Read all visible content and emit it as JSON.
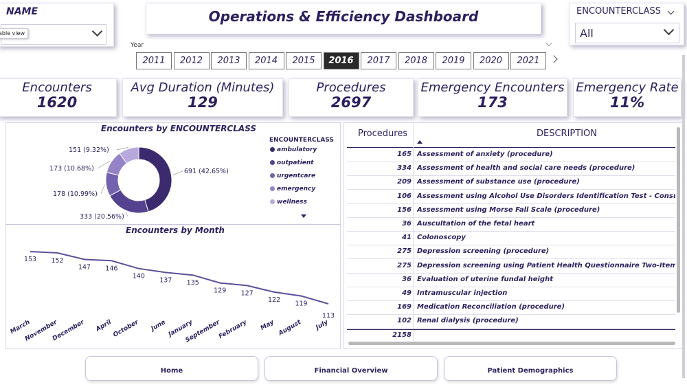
{
  "header": {
    "title": "Operations & Efficiency Dashboard"
  },
  "name_slicer": {
    "title": "NAME",
    "tooltip": "able view"
  },
  "year_slicer": {
    "label": "Year",
    "years": [
      "2011",
      "2012",
      "2013",
      "2014",
      "2015",
      "2016",
      "2017",
      "2018",
      "2019",
      "2020",
      "2021"
    ],
    "selected": "2016"
  },
  "encounterclass_slicer": {
    "title": "ENCOUNTERCLASS",
    "value": "All"
  },
  "kpis": [
    {
      "label": "Encounters",
      "value": "1620"
    },
    {
      "label": "Avg Duration (Minutes)",
      "value": "129"
    },
    {
      "label": "Procedures",
      "value": "2697"
    },
    {
      "label": "Emergency Encounters",
      "value": "173"
    },
    {
      "label": "Emergency Rate",
      "value": "11%"
    }
  ],
  "chart_data": [
    {
      "type": "pie",
      "title": "Encounters by ENCOUNTERCLASS",
      "legend_title": "ENCOUNTERCLASS",
      "legend_position": "right",
      "categories": [
        "ambulatory",
        "outpatient",
        "urgentcare",
        "emergency",
        "wellness"
      ],
      "values": [
        691,
        333,
        178,
        173,
        151
      ],
      "labels": [
        "691 (42.65%)",
        "333 (20.56%)",
        "178 (10.99%)",
        "173 (10.68%)",
        "151 (9.32%)"
      ],
      "colors": [
        "#3b2a6e",
        "#54418f",
        "#7562ae",
        "#9683c7",
        "#b8a9dd"
      ]
    },
    {
      "type": "line",
      "title": "Encounters by Month",
      "categories": [
        "March",
        "November",
        "December",
        "April",
        "October",
        "June",
        "January",
        "September",
        "February",
        "May",
        "August",
        "July"
      ],
      "values": [
        153,
        152,
        147,
        146,
        140,
        137,
        135,
        129,
        127,
        122,
        119,
        113
      ],
      "color": "#5e4e9a"
    }
  ],
  "table": {
    "columns": [
      "Procedures",
      "DESCRIPTION"
    ],
    "rows": [
      {
        "procedures": "165",
        "description": "Assessment of anxiety (procedure)"
      },
      {
        "procedures": "334",
        "description": "Assessment of health and social care needs (procedure)"
      },
      {
        "procedures": "209",
        "description": "Assessment of substance use (procedure)"
      },
      {
        "procedures": "106",
        "description": "Assessment using Alcohol Use Disorders Identification Test - Consumption"
      },
      {
        "procedures": "156",
        "description": "Assessment using Morse Fall Scale (procedure)"
      },
      {
        "procedures": "36",
        "description": "Auscultation of the fetal heart"
      },
      {
        "procedures": "41",
        "description": "Colonoscopy"
      },
      {
        "procedures": "275",
        "description": "Depression screening (procedure)"
      },
      {
        "procedures": "275",
        "description": "Depression screening using Patient Health Questionnaire Two-Item score ("
      },
      {
        "procedures": "36",
        "description": "Evaluation of uterine fundal height"
      },
      {
        "procedures": "49",
        "description": "Intramuscular injection"
      },
      {
        "procedures": "169",
        "description": "Medication Reconciliation (procedure)"
      },
      {
        "procedures": "102",
        "description": "Renal dialysis (procedure)"
      }
    ],
    "total": "2158"
  },
  "nav": {
    "home": "Home",
    "financial": "Financial Overview",
    "patient": "Patient Demographics"
  }
}
